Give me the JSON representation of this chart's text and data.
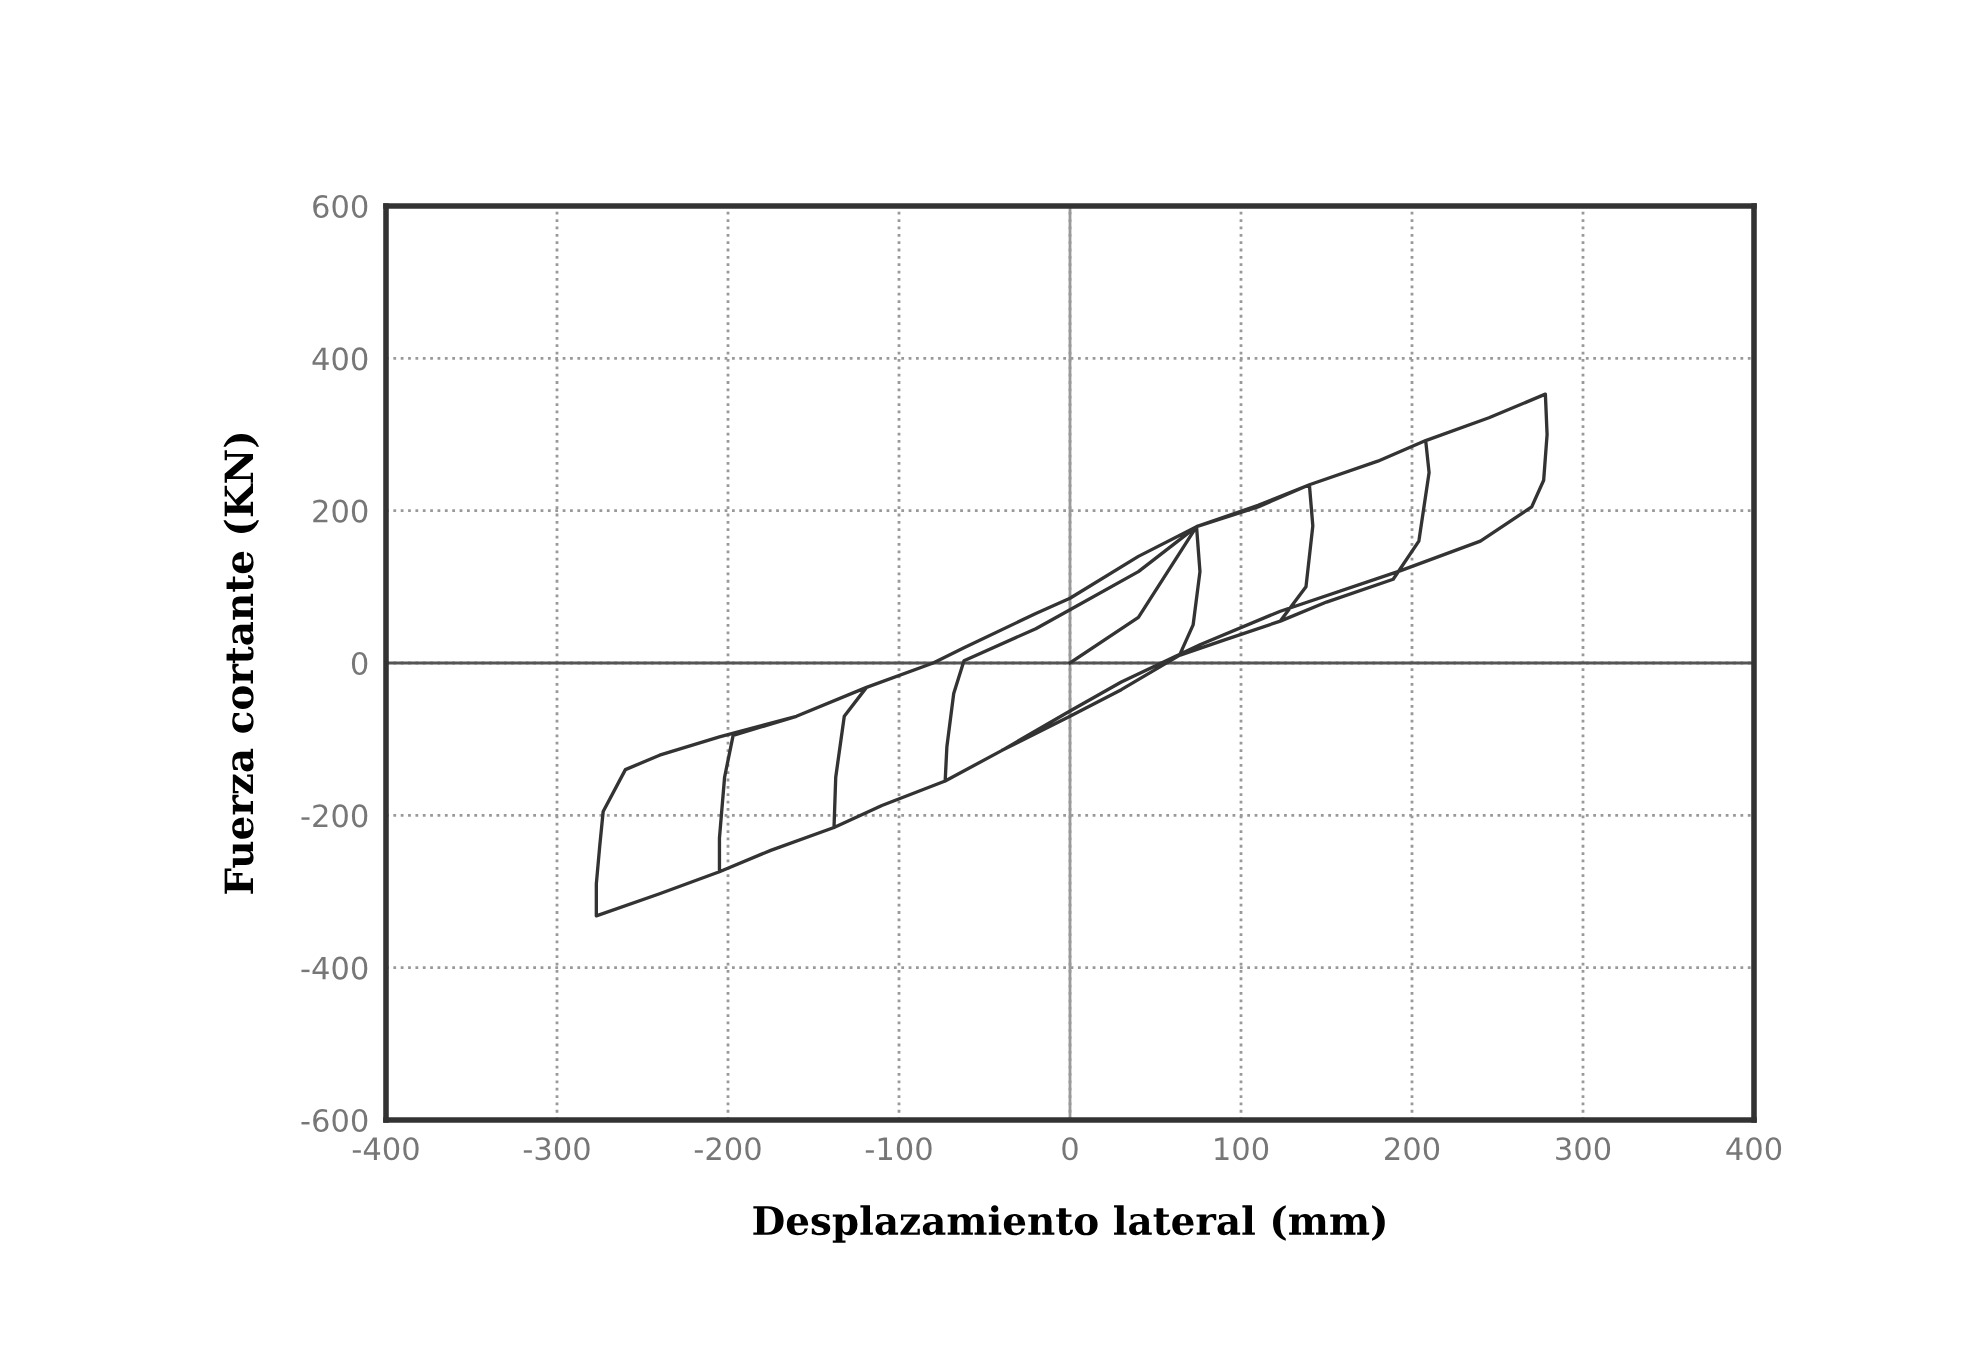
{
  "chart_data": {
    "type": "line",
    "xlabel": "Desplazamiento lateral (mm)",
    "ylabel": "Fuerza cortante (KN)",
    "xlim": [
      -400,
      400
    ],
    "xticks": [
      -400,
      -300,
      -200,
      -100,
      0,
      100,
      200,
      300,
      400
    ],
    "ylim": [
      -600,
      600
    ],
    "yticks": [
      -600,
      -400,
      -200,
      0,
      200,
      400,
      600
    ],
    "grid": true,
    "line_style": "solid",
    "marker": "none",
    "ref_lines": [
      {
        "axis": "y",
        "value": 0,
        "color": "#555555",
        "line_style": "solid"
      },
      {
        "axis": "x",
        "value": 0,
        "color": "#999999",
        "line_style": "solid"
      }
    ],
    "series": [
      {
        "color": "#333333",
        "x": [
          0,
          40,
          74,
          76,
          72,
          64,
          30,
          0,
          -40,
          -73,
          -72,
          -68,
          -62,
          -20,
          0,
          40,
          74,
          110,
          140,
          142,
          138,
          123,
          90,
          64,
          30,
          0,
          -40,
          -73,
          -110,
          -138,
          -137,
          -132,
          -119,
          -80,
          -62,
          -20,
          0,
          40,
          74,
          110,
          140,
          180,
          208,
          210,
          204,
          189,
          150,
          123,
          90,
          64,
          30,
          0,
          -40,
          -73,
          -110,
          -138,
          -175,
          -205,
          -205,
          -202,
          -197,
          -160,
          -119,
          -80,
          -62,
          -20,
          0,
          40,
          74,
          110,
          140,
          180,
          208,
          245,
          278,
          279,
          277,
          270,
          240,
          193,
          123,
          76,
          30,
          0,
          -40,
          -73,
          -110,
          -138,
          -175,
          -205,
          -240,
          -277,
          -277,
          -275,
          -273,
          -260,
          -240,
          -205,
          -160,
          -119,
          -80,
          -62,
          -20,
          0,
          40,
          74
        ],
        "values": [
          0,
          60,
          179,
          120,
          50,
          10,
          -35,
          -70,
          -115,
          -155,
          -110,
          -40,
          3,
          45,
          70,
          120,
          179,
          205,
          234,
          180,
          100,
          55,
          30,
          10,
          -35,
          -70,
          -115,
          -155,
          -187,
          -216,
          -150,
          -70,
          -32,
          0,
          20,
          65,
          85,
          140,
          179,
          207,
          234,
          265,
          292,
          250,
          160,
          110,
          80,
          55,
          30,
          10,
          -35,
          -70,
          -115,
          -155,
          -187,
          -216,
          -246,
          -274,
          -230,
          -150,
          -95,
          -70,
          -32,
          0,
          20,
          65,
          85,
          140,
          179,
          207,
          234,
          265,
          292,
          322,
          353,
          300,
          240,
          205,
          160,
          121,
          68,
          24,
          -25,
          -63,
          -115,
          -155,
          -187,
          -216,
          -246,
          -274,
          -303,
          -332,
          -290,
          -240,
          -195,
          -140,
          -121,
          -97,
          -70,
          -32,
          0,
          20,
          65,
          85,
          140,
          179
        ]
      }
    ]
  }
}
